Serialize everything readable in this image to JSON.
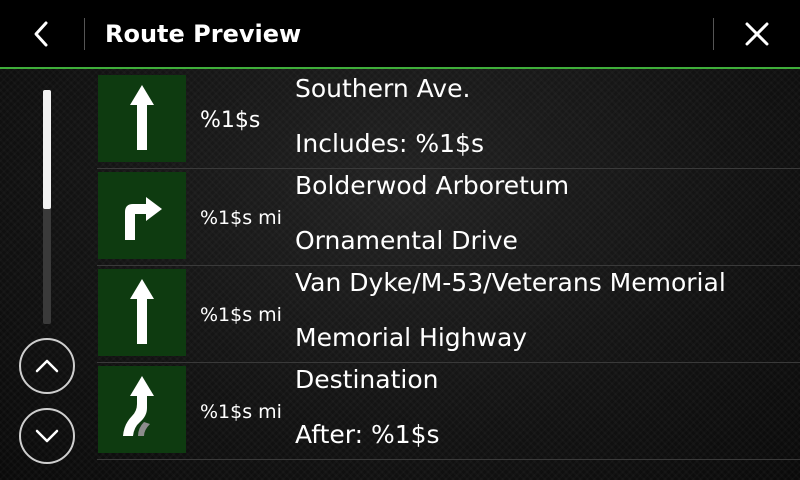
{
  "header": {
    "title": "Route Preview",
    "back_icon": "chevron-left-icon",
    "close_icon": "close-icon"
  },
  "colors": {
    "accent": "#3fae3a",
    "maneuver_bg": "#0e3b10"
  },
  "scroll": {
    "up_icon": "chevron-up-icon",
    "down_icon": "chevron-down-icon",
    "position_fraction": 0.0,
    "visible_fraction": 0.51
  },
  "route": {
    "steps": [
      {
        "icon": "straight-arrow-icon",
        "distance": "%1$s",
        "street": "Southern Ave.",
        "detail": "Includes: %1$s"
      },
      {
        "icon": "turn-right-arrow-icon",
        "distance": "%1$s mi",
        "street": "Bolderwod Arboretum",
        "detail": "Ornamental Drive"
      },
      {
        "icon": "straight-arrow-icon",
        "distance": "%1$s mi",
        "street": "Van Dyke/M-53/Veterans Memorial",
        "detail": "Memorial Highway"
      },
      {
        "icon": "destination-arrow-icon",
        "distance": "%1$s mi",
        "street": "Destination",
        "detail": "After: %1$s"
      }
    ]
  }
}
